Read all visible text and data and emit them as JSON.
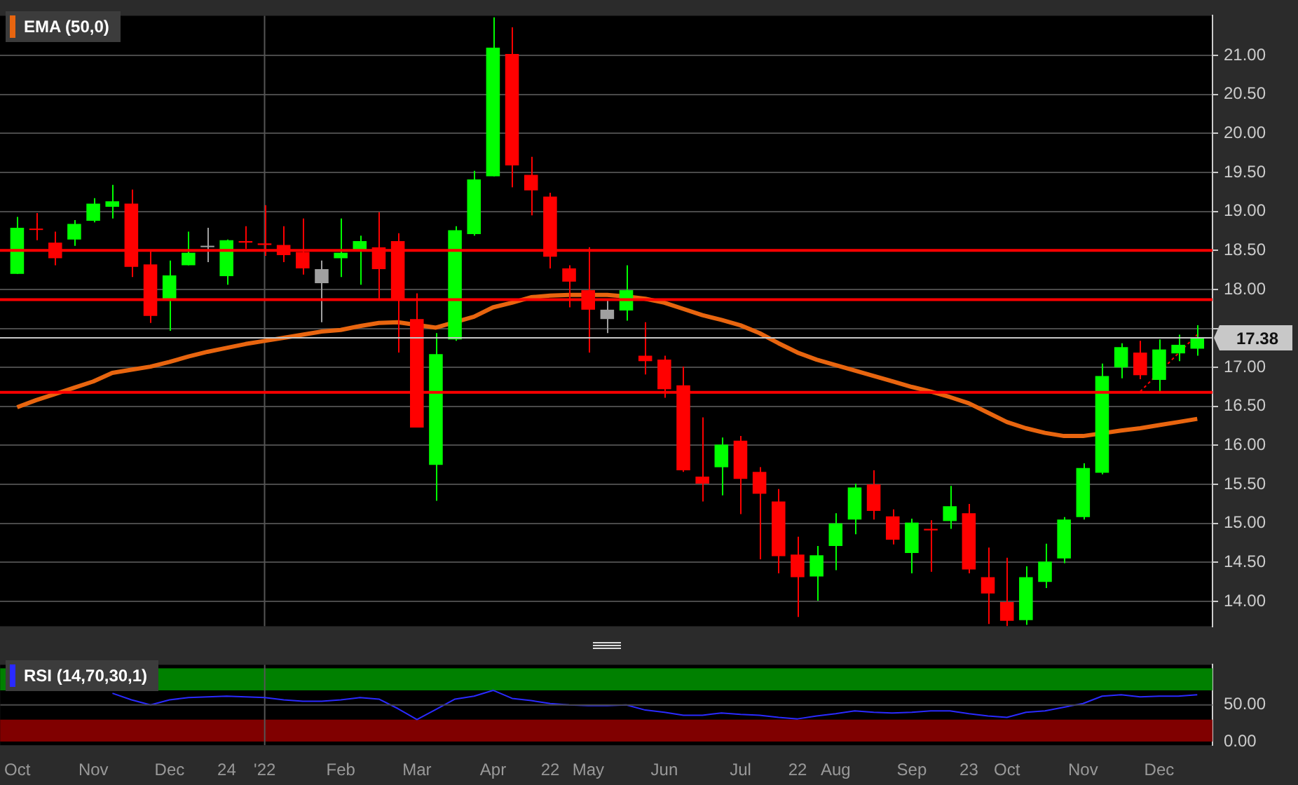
{
  "chart_data": [
    {
      "type": "candlestick",
      "categories": [
        "Oct",
        null,
        null,
        null,
        "Nov",
        null,
        null,
        null,
        "Dec",
        null,
        null,
        "24",
        null,
        "'22",
        null,
        null,
        null,
        "Feb",
        null,
        null,
        null,
        "Mar",
        null,
        null,
        null,
        "Apr",
        null,
        null,
        "22",
        null,
        "May",
        null,
        null,
        null,
        "Jun",
        null,
        null,
        null,
        "Jul",
        null,
        null,
        "22",
        null,
        "Aug",
        null,
        null,
        null,
        "Sep",
        null,
        null,
        "23",
        null,
        "Oct",
        null,
        null,
        null,
        "Nov",
        null,
        null,
        null,
        "Dec",
        null,
        null
      ],
      "series": [
        {
          "colors": [
            "#00ff00",
            "#ff0000",
            "#ff0000",
            "#00ff00",
            "#00ff00",
            "#00ff00",
            "#ff0000",
            "#ff0000",
            "#00ff00",
            "#00ff00",
            "#a0a0a0",
            "#00ff00",
            "#ff0000",
            "#ff0000",
            "#ff0000",
            "#ff0000",
            "#a0a0a0",
            "#00ff00",
            "#00ff00",
            "#ff0000",
            "#ff0000",
            "#ff0000",
            "#00ff00",
            "#00ff00",
            "#00ff00",
            "#00ff00",
            "#ff0000",
            "#ff0000",
            "#ff0000",
            "#ff0000",
            "#ff0000",
            "#a0a0a0",
            "#00ff00",
            "#ff0000",
            "#ff0000",
            "#ff0000",
            "#ff0000",
            "#00ff00",
            "#ff0000",
            "#ff0000",
            "#ff0000",
            "#ff0000",
            "#00ff00",
            "#00ff00",
            "#00ff00",
            "#ff0000",
            "#ff0000",
            "#00ff00",
            "#ff0000",
            "#00ff00",
            "#ff0000",
            "#ff0000",
            "#ff0000",
            "#00ff00",
            "#00ff00",
            "#00ff00",
            "#00ff00",
            "#00ff00",
            "#00ff00",
            "#ff0000",
            "#00ff00",
            "#00ff00",
            "#00ff00"
          ],
          "ohlc": [
            [
              18.2,
              18.93,
              18.2,
              18.79
            ],
            [
              18.78,
              18.98,
              18.63,
              18.77
            ],
            [
              18.6,
              18.74,
              18.31,
              18.4
            ],
            [
              18.64,
              18.89,
              18.56,
              18.84
            ],
            [
              18.88,
              19.17,
              18.86,
              19.1
            ],
            [
              19.06,
              19.34,
              18.91,
              19.13
            ],
            [
              19.1,
              19.28,
              18.16,
              18.29
            ],
            [
              18.32,
              18.5,
              17.57,
              17.66
            ],
            [
              17.88,
              18.37,
              17.47,
              18.18
            ],
            [
              18.31,
              18.74,
              18.31,
              18.47
            ],
            [
              18.56,
              18.79,
              18.35,
              18.55
            ],
            [
              18.17,
              18.64,
              18.06,
              18.63
            ],
            [
              18.62,
              18.81,
              18.52,
              18.6
            ],
            [
              18.59,
              19.08,
              18.43,
              18.57
            ],
            [
              18.57,
              18.81,
              18.35,
              18.44
            ],
            [
              18.48,
              18.91,
              18.19,
              18.27
            ],
            [
              18.26,
              18.37,
              17.58,
              18.08
            ],
            [
              18.4,
              18.91,
              18.16,
              18.47
            ],
            [
              18.51,
              18.69,
              18.06,
              18.62
            ],
            [
              18.54,
              18.99,
              17.88,
              18.26
            ],
            [
              18.62,
              18.72,
              17.19,
              17.88
            ],
            [
              17.62,
              17.95,
              16.23,
              16.23
            ],
            [
              15.75,
              17.44,
              15.29,
              17.17
            ],
            [
              17.36,
              18.81,
              17.34,
              18.76
            ],
            [
              18.71,
              19.52,
              18.69,
              19.41
            ],
            [
              19.45,
              21.49,
              19.45,
              21.1
            ],
            [
              21.02,
              21.36,
              19.31,
              19.59
            ],
            [
              19.47,
              19.7,
              18.95,
              19.27
            ],
            [
              19.19,
              19.24,
              18.27,
              18.42
            ],
            [
              18.27,
              18.31,
              17.77,
              18.1
            ],
            [
              17.99,
              18.54,
              17.19,
              17.74
            ],
            [
              17.74,
              17.86,
              17.44,
              17.62
            ],
            [
              17.73,
              18.31,
              17.6,
              17.99
            ],
            [
              17.15,
              17.58,
              16.91,
              17.08
            ],
            [
              17.1,
              17.15,
              16.61,
              16.72
            ],
            [
              16.77,
              17.01,
              15.66,
              15.68
            ],
            [
              15.6,
              16.36,
              15.28,
              15.51
            ],
            [
              15.72,
              16.1,
              15.36,
              16.01
            ],
            [
              16.06,
              16.12,
              15.12,
              15.57
            ],
            [
              15.66,
              15.72,
              14.54,
              15.38
            ],
            [
              15.28,
              15.44,
              14.36,
              14.58
            ],
            [
              14.6,
              14.83,
              13.8,
              14.31
            ],
            [
              14.32,
              14.71,
              14.01,
              14.59
            ],
            [
              14.71,
              15.13,
              14.4,
              15.0
            ],
            [
              15.05,
              15.51,
              14.86,
              15.46
            ],
            [
              15.5,
              15.68,
              15.05,
              15.16
            ],
            [
              15.09,
              15.18,
              14.73,
              14.79
            ],
            [
              14.62,
              15.06,
              14.36,
              15.01
            ],
            [
              14.93,
              15.04,
              14.38,
              14.91
            ],
            [
              15.03,
              15.48,
              14.93,
              15.22
            ],
            [
              15.13,
              15.25,
              14.36,
              14.41
            ],
            [
              14.31,
              14.69,
              13.71,
              14.1
            ],
            [
              13.99,
              14.56,
              13.68,
              13.75
            ],
            [
              13.76,
              14.45,
              13.7,
              14.31
            ],
            [
              14.25,
              14.74,
              14.17,
              14.51
            ],
            [
              14.55,
              15.08,
              14.49,
              15.05
            ],
            [
              15.08,
              15.77,
              15.05,
              15.71
            ],
            [
              15.65,
              17.05,
              15.63,
              16.89
            ],
            [
              17.0,
              17.31,
              16.86,
              17.26
            ],
            [
              17.19,
              17.34,
              16.85,
              16.9
            ],
            [
              16.84,
              17.36,
              16.69,
              17.23
            ],
            [
              17.18,
              17.42,
              17.08,
              17.29
            ],
            [
              17.24,
              17.54,
              17.15,
              17.38
            ]
          ]
        },
        {
          "type": "line",
          "name": "EMA (50,0)",
          "color": "#e8650f",
          "values": [
            16.49,
            16.58,
            16.66,
            16.74,
            16.82,
            16.93,
            16.97,
            17.01,
            17.07,
            17.14,
            17.2,
            17.25,
            17.3,
            17.34,
            17.38,
            17.42,
            17.46,
            17.48,
            17.53,
            17.57,
            17.58,
            null,
            17.51,
            null,
            17.65,
            17.77,
            17.83,
            17.9,
            17.92,
            17.93,
            17.93,
            17.93,
            17.91,
            17.88,
            17.83,
            17.75,
            17.67,
            17.61,
            17.54,
            17.44,
            17.31,
            17.19,
            17.1,
            17.03,
            16.96,
            16.89,
            16.82,
            16.75,
            16.69,
            16.62,
            16.54,
            16.42,
            16.3,
            16.22,
            16.16,
            16.12,
            16.12,
            null,
            16.19,
            16.22,
            16.26,
            16.3,
            16.34
          ]
        },
        {
          "type": "line",
          "color": "#ff0000",
          "line_style": "dotted",
          "values": [
            null,
            null,
            null,
            null,
            null,
            null,
            null,
            null,
            null,
            null,
            null,
            null,
            null,
            null,
            null,
            null,
            null,
            null,
            null,
            null,
            null,
            null,
            null,
            null,
            null,
            null,
            null,
            null,
            null,
            null,
            null,
            null,
            null,
            null,
            null,
            null,
            null,
            null,
            null,
            null,
            null,
            null,
            null,
            null,
            null,
            null,
            null,
            null,
            null,
            null,
            null,
            null,
            null,
            null,
            null,
            null,
            null,
            null,
            null,
            16.69,
            null,
            17.18,
            17.42
          ]
        }
      ],
      "ylim": [
        13.68,
        21.51
      ],
      "yticks": [
        {
          "value": 14,
          "label": "14.00"
        },
        {
          "value": 14.5,
          "label": "14.50"
        },
        {
          "value": 15,
          "label": "15.00"
        },
        {
          "value": 15.5,
          "label": "15.50"
        },
        {
          "value": 16,
          "label": "16.00"
        },
        {
          "value": 16.5,
          "label": "16.50"
        },
        {
          "value": 17,
          "label": "17.00"
        },
        {
          "value": 17.5,
          "label": null
        },
        {
          "value": 18,
          "label": "18.00"
        },
        {
          "value": 18.5,
          "label": "18.50"
        },
        {
          "value": 19,
          "label": "19.00"
        },
        {
          "value": 19.5,
          "label": "19.50"
        },
        {
          "value": 20,
          "label": "20.00"
        },
        {
          "value": 20.5,
          "label": "20.50"
        },
        {
          "value": 21,
          "label": "21.00"
        }
      ],
      "ref_lines": [
        {
          "axis": "x",
          "value": "'22",
          "color": "#555555"
        },
        {
          "axis": "y",
          "value": 17.38,
          "label": "17.38",
          "color": "#c8c8c8"
        },
        {
          "axis": "y",
          "value": 18.5,
          "color": "#ff0000"
        },
        {
          "axis": "y",
          "value": 17.87,
          "color": "#ff0000"
        },
        {
          "axis": "y",
          "value": 16.68,
          "color": "#ff0000"
        }
      ],
      "grid": "y",
      "legend": "top left",
      "marker": "none",
      "tick_labels": "y"
    },
    {
      "type": "line",
      "categories": [
        "Oct",
        null,
        null,
        null,
        "Nov",
        null,
        null,
        null,
        "Dec",
        null,
        null,
        "24",
        null,
        "'22",
        null,
        null,
        null,
        "Feb",
        null,
        null,
        null,
        "Mar",
        null,
        null,
        null,
        "Apr",
        null,
        null,
        "22",
        null,
        "May",
        null,
        null,
        null,
        "Jun",
        null,
        null,
        null,
        "Jul",
        null,
        null,
        "22",
        null,
        "Aug",
        null,
        null,
        null,
        "Sep",
        null,
        null,
        "23",
        null,
        "Oct",
        null,
        null,
        null,
        "Nov",
        null,
        null,
        null,
        "Dec",
        null,
        null
      ],
      "series": [
        {
          "name": "RSI (14,70,30,1)",
          "color": "#2a2aff",
          "values": [
            null,
            null,
            null,
            null,
            null,
            66,
            57,
            50,
            57,
            60,
            61,
            62,
            61,
            60,
            57,
            55,
            55,
            57,
            60,
            58,
            45,
            30,
            44,
            58,
            62,
            70,
            59,
            56,
            52,
            50,
            49,
            49,
            50,
            43,
            40,
            36,
            36,
            39,
            37,
            36,
            33,
            31,
            35,
            38,
            42,
            40,
            39,
            40,
            42,
            42,
            38,
            35,
            33,
            40,
            42,
            47,
            52,
            62,
            64,
            61,
            62,
            62,
            64
          ]
        }
      ],
      "ylim": [
        -5,
        105
      ],
      "yticks": [
        {
          "value": 0,
          "label": "0.00"
        },
        {
          "value": 50,
          "label": "50.00"
        }
      ],
      "bands": [
        {
          "axis": "y",
          "from": 70,
          "to": 100,
          "color": "#008000"
        },
        {
          "axis": "y",
          "from": 0,
          "to": 30,
          "color": "#800000"
        }
      ],
      "ref_lines": [
        {
          "axis": "x",
          "value": "'22",
          "color": "#555555"
        },
        {
          "axis": "y",
          "value": 50,
          "color": "#4a4a4a"
        }
      ],
      "legend": "top left",
      "marker": "none"
    }
  ]
}
